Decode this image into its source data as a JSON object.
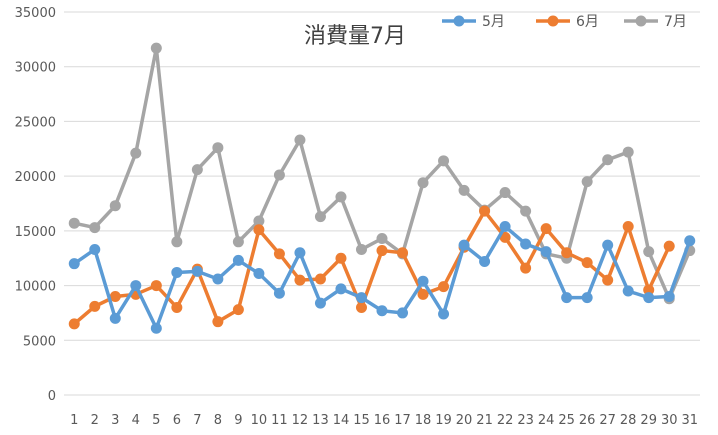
{
  "chart_data": {
    "type": "line",
    "title": "消費量7月",
    "xlabel": "",
    "ylabel": "",
    "ylim": [
      0,
      35000
    ],
    "yticks": [
      0,
      5000,
      10000,
      15000,
      20000,
      25000,
      30000,
      35000
    ],
    "grid": true,
    "legend_position": "top-right",
    "x": [
      1,
      2,
      3,
      4,
      5,
      6,
      7,
      8,
      9,
      10,
      11,
      12,
      13,
      14,
      15,
      16,
      17,
      18,
      19,
      20,
      21,
      22,
      23,
      24,
      25,
      26,
      27,
      28,
      29,
      30,
      31
    ],
    "series": [
      {
        "name": "5月",
        "color": "#5B9BD5",
        "values": [
          12000,
          13300,
          7000,
          10000,
          6100,
          11200,
          11300,
          10600,
          12300,
          11100,
          9300,
          13000,
          8400,
          9700,
          8900,
          7700,
          7500,
          10400,
          7400,
          13700,
          12200,
          15400,
          13800,
          13100,
          8900,
          8900,
          13700,
          9500,
          8900,
          9000,
          14100
        ]
      },
      {
        "name": "6月",
        "color": "#ED7D31",
        "values": [
          6500,
          8100,
          9000,
          9200,
          10000,
          8000,
          11500,
          6700,
          7800,
          15100,
          12900,
          10500,
          10600,
          12500,
          8000,
          13200,
          13000,
          9200,
          9900,
          13500,
          16800,
          14400,
          11600,
          15200,
          13000,
          12100,
          10500,
          15400,
          9600,
          13600,
          null
        ]
      },
      {
        "name": "7月",
        "color": "#A5A5A5",
        "values": [
          15700,
          15300,
          17300,
          22100,
          31700,
          14000,
          20600,
          22600,
          14000,
          15900,
          20100,
          23300,
          16300,
          18100,
          13300,
          14300,
          12900,
          19400,
          21400,
          18700,
          16900,
          18500,
          16800,
          12900,
          12500,
          19500,
          21500,
          22200,
          13100,
          8800,
          13200
        ]
      }
    ]
  }
}
